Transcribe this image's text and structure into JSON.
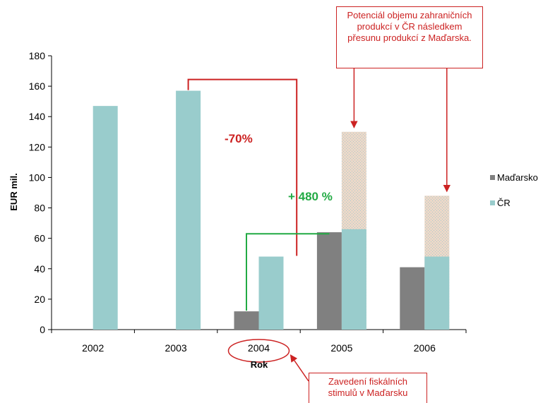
{
  "chart_data": {
    "type": "bar",
    "title": "",
    "ylabel": "EUR mil.",
    "xlabel": "Rok",
    "ylim": [
      0,
      180
    ],
    "yticks": [
      0,
      20,
      40,
      60,
      80,
      100,
      120,
      140,
      160,
      180
    ],
    "categories": [
      "2002",
      "2003",
      "2004",
      "2005",
      "2006"
    ],
    "series": [
      {
        "name": "Maďarsko",
        "color": "#808080",
        "values": [
          null,
          null,
          12,
          64,
          41
        ]
      },
      {
        "name": "ČR",
        "color": "#99cccc",
        "values": [
          147,
          157,
          48,
          66,
          48
        ]
      }
    ],
    "potential": {
      "color": "#ead7c7",
      "values": [
        null,
        null,
        null,
        130,
        88
      ]
    },
    "legend_position": "right",
    "grid": false,
    "annotations": {
      "potential_note": "Potenciál objemu zahraničních  produkcí v ČR následkem přesunu produkcí z Maďarska.",
      "decline_label": "-70%",
      "growth_label": "+ 480 %",
      "stimulus_note": "Zavedení fiskálních stimulů v Maďarsku",
      "decline_color": "#cc2222",
      "growth_color": "#22aa44"
    }
  }
}
